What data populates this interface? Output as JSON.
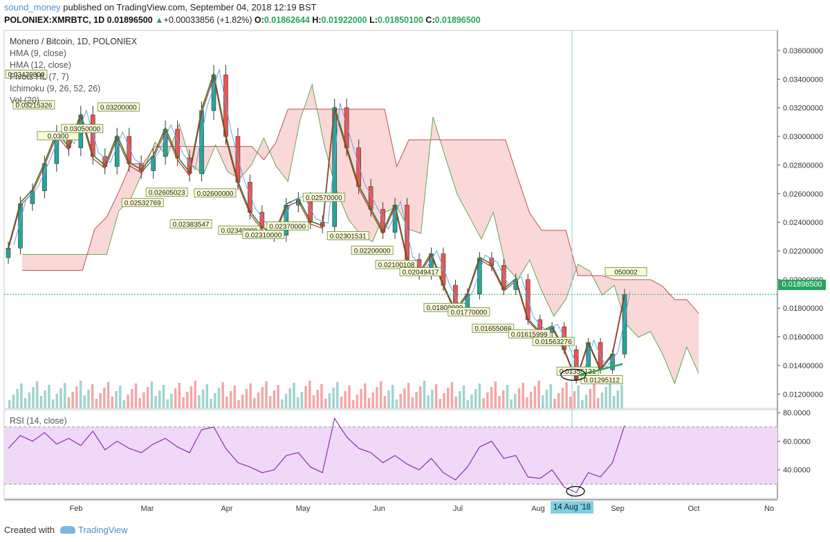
{
  "header": {
    "user": "sound_money",
    "published": "published on TradingView.com, September 04, 2018 12:19 BST",
    "symbol": "POLONIEX:XMRBTC, 1D",
    "last": "0.01896500",
    "arrow": "▲",
    "change": "+0.00033856 (+1.82%)",
    "o_label": "O:",
    "o": "0.01862644",
    "h_label": "H:",
    "h": "0.01922000",
    "l_label": "L:",
    "l": "0.01850100",
    "c_label": "C:",
    "c": "0.01896500"
  },
  "indicators": {
    "title": "Monero / Bitcoin, 1D, POLONIEX",
    "items": [
      "HMA (9, close)",
      "HMA (12, close)",
      "Pivots HL (7, 7)",
      "Ichimoku (9, 26, 52, 26)",
      "Vol (20)"
    ]
  },
  "rsi": {
    "label": "RSI (14, close)"
  },
  "footer": {
    "created": "Created with",
    "brand": "TradingView"
  },
  "tags": {
    "price": "0.01896500",
    "date": "14 Aug '18"
  },
  "chart_data": {
    "type": "candlestick",
    "title": "Monero / Bitcoin, 1D, POLONIEX",
    "x_labels": [
      "Feb",
      "Mar",
      "Apr",
      "May",
      "Jun",
      "Jul",
      "Aug",
      "Sep",
      "Oct",
      "No"
    ],
    "price_axis": {
      "ylim": [
        0.011,
        0.0374
      ],
      "ticks": [
        "0.03600000",
        "0.03400000",
        "0.03200000",
        "0.03000000",
        "0.02800000",
        "0.02600000",
        "0.02400000",
        "0.02200000",
        "0.02000000",
        "0.01800000",
        "0.01600000",
        "0.01400000",
        "0.01200000"
      ]
    },
    "rsi_axis": {
      "ylim": [
        20,
        82
      ],
      "ticks": [
        "80.0000",
        "60.0000",
        "40.0000"
      ],
      "bands": [
        30,
        70
      ]
    },
    "close_series": [
      0.0222,
      0.0253,
      0.0262,
      0.0281,
      0.0302,
      0.0292,
      0.0315,
      0.0286,
      0.0279,
      0.03,
      0.0281,
      0.0276,
      0.0286,
      0.0305,
      0.0285,
      0.0274,
      0.0318,
      0.0343,
      0.03,
      0.0268,
      0.0247,
      0.0236,
      0.0231,
      0.0252,
      0.0256,
      0.024,
      0.0237,
      0.032,
      0.0292,
      0.0265,
      0.0249,
      0.0233,
      0.0252,
      0.0214,
      0.0204,
      0.0218,
      0.0196,
      0.0178,
      0.019,
      0.0215,
      0.021,
      0.0193,
      0.02,
      0.0172,
      0.0163,
      0.0167,
      0.0151,
      0.013,
      0.0156,
      0.0137,
      0.0148,
      0.01896
    ],
    "pivot_labels": [
      {
        "text": "0.03429800",
        "price": 0.034298
      },
      {
        "text": "0.03215326",
        "price": 0.03215326
      },
      {
        "text": "0.0300",
        "price": 0.03
      },
      {
        "text": "0.03050000",
        "price": 0.0305
      },
      {
        "text": "0.03200000",
        "price": 0.032
      },
      {
        "text": "0.02532769",
        "price": 0.02532769
      },
      {
        "text": "0.02605023",
        "price": 0.02605023
      },
      {
        "text": "0.02383547",
        "price": 0.02383547
      },
      {
        "text": "0.02600000",
        "price": 0.026
      },
      {
        "text": "0.02340000",
        "price": 0.0234
      },
      {
        "text": "0.02310000",
        "price": 0.0231
      },
      {
        "text": "0.02370000",
        "price": 0.0237
      },
      {
        "text": "0.02570000",
        "price": 0.0257
      },
      {
        "text": "0.02301531",
        "price": 0.02301531
      },
      {
        "text": "0.02200000",
        "price": 0.022
      },
      {
        "text": "0.02100108",
        "price": 0.02100108
      },
      {
        "text": "0.02049417",
        "price": 0.02049417
      },
      {
        "text": "0.01800000",
        "price": 0.018
      },
      {
        "text": "0.01770000",
        "price": 0.0177
      },
      {
        "text": "0.01655069",
        "price": 0.01655069
      },
      {
        "text": "0.01615999",
        "price": 0.01615999
      },
      {
        "text": "0.01563276",
        "price": 0.01563276
      },
      {
        "text": "0.01355131",
        "price": 0.01355131
      },
      {
        "text": "0.01295112",
        "price": 0.01295112
      },
      {
        "text": "050002",
        "price": 0.0205
      }
    ],
    "rsi_series": [
      55,
      64,
      60,
      66,
      58,
      62,
      57,
      67,
      54,
      60,
      55,
      52,
      58,
      62,
      56,
      52,
      68,
      70,
      55,
      45,
      42,
      38,
      40,
      50,
      52,
      42,
      38,
      76,
      63,
      55,
      52,
      45,
      50,
      44,
      40,
      48,
      38,
      33,
      42,
      56,
      60,
      48,
      50,
      35,
      34,
      40,
      28,
      24,
      38,
      35,
      45,
      71
    ],
    "colors": {
      "bull": "#26a69a",
      "bear": "#ef5350",
      "cloud_bear": "#f6b8b8",
      "cloud_bull": "#b9e6b9",
      "rsi": "#8e2cad",
      "rsi_band": "#efd9f7",
      "hma9": "#2e7d32",
      "hma12": "#c62828",
      "kijun": "#8d2020",
      "tenkan": "#5ea6e6"
    }
  }
}
